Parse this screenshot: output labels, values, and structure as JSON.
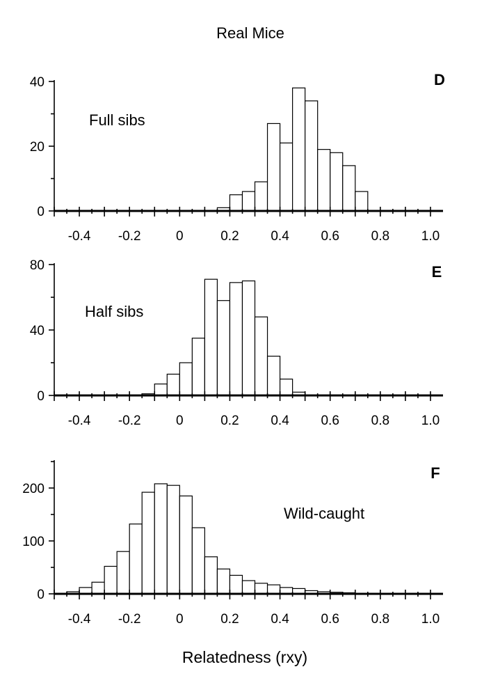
{
  "figure": {
    "title": "Real Mice",
    "xlabel": "Relatedness (rxy)"
  },
  "chart_data": [
    {
      "type": "bar",
      "panel_letter": "D",
      "annotation": "Full sibs",
      "x_tick_labels": [
        "-0.4",
        "-0.2",
        "0",
        "0.2",
        "0.4",
        "0.6",
        "0.8",
        "1.0"
      ],
      "y_tick_labels": [
        "0",
        "20",
        "40"
      ],
      "xlim": [
        -0.5,
        1.05
      ],
      "ylim": [
        0,
        40
      ],
      "bin_width": 0.05,
      "bin_starts": [
        0.15,
        0.2,
        0.25,
        0.3,
        0.35,
        0.4,
        0.45,
        0.5,
        0.55,
        0.6,
        0.65,
        0.7
      ],
      "values": [
        1,
        5,
        6,
        9,
        27,
        21,
        38,
        34,
        19,
        18,
        14,
        6
      ]
    },
    {
      "type": "bar",
      "panel_letter": "E",
      "annotation": "Half sibs",
      "x_tick_labels": [
        "-0.4",
        "-0.2",
        "0",
        "0.2",
        "0.4",
        "0.6",
        "0.8",
        "1.0"
      ],
      "y_tick_labels": [
        "0",
        "40",
        "80"
      ],
      "xlim": [
        -0.5,
        1.05
      ],
      "ylim": [
        0,
        80
      ],
      "bin_width": 0.05,
      "bin_starts": [
        -0.15,
        -0.1,
        -0.05,
        0.0,
        0.05,
        0.1,
        0.15,
        0.2,
        0.25,
        0.3,
        0.35,
        0.4,
        0.45
      ],
      "values": [
        1,
        7,
        13,
        20,
        35,
        71,
        58,
        69,
        70,
        48,
        24,
        10,
        2
      ]
    },
    {
      "type": "bar",
      "panel_letter": "F",
      "annotation": "Wild-caught",
      "x_tick_labels": [
        "-0.4",
        "-0.2",
        "0",
        "0.2",
        "0.4",
        "0.6",
        "0.8",
        "1.0"
      ],
      "y_tick_labels": [
        "0",
        "100",
        "200"
      ],
      "xlim": [
        -0.5,
        1.05
      ],
      "ylim": [
        0,
        250
      ],
      "bin_width": 0.05,
      "bin_starts": [
        -0.45,
        -0.4,
        -0.35,
        -0.3,
        -0.25,
        -0.2,
        -0.15,
        -0.1,
        -0.05,
        0.0,
        0.05,
        0.1,
        0.15,
        0.2,
        0.25,
        0.3,
        0.35,
        0.4,
        0.45,
        0.5,
        0.55,
        0.6,
        0.65
      ],
      "values": [
        4,
        12,
        22,
        52,
        80,
        132,
        192,
        208,
        205,
        185,
        125,
        70,
        47,
        35,
        25,
        20,
        17,
        12,
        10,
        6,
        4,
        3,
        2
      ]
    }
  ]
}
